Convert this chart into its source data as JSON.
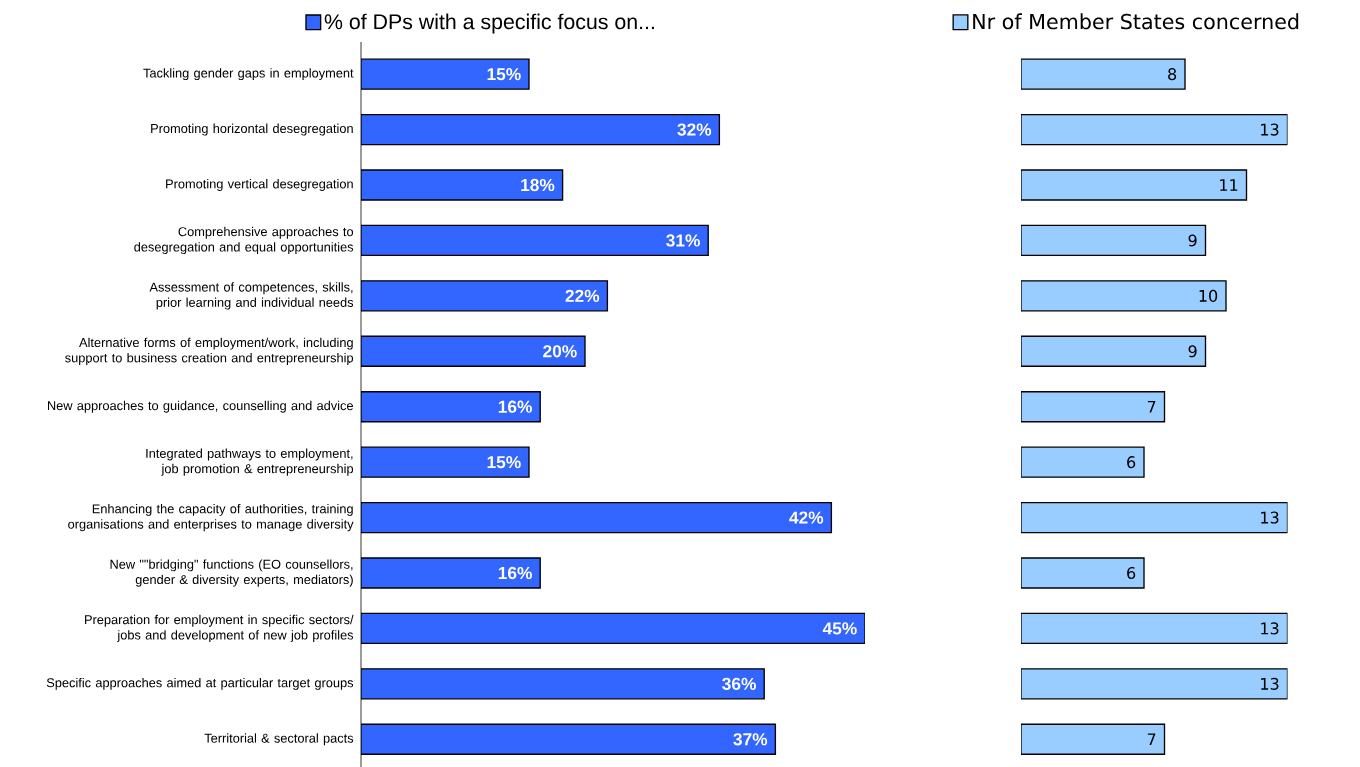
{
  "chart_data": [
    {
      "type": "bar",
      "orientation": "horizontal",
      "legend": "top",
      "tick_labels": "y",
      "categories": [
        "Tackling gender gaps in employment",
        "Promoting horizontal desegregation",
        "Promoting vertical desegregation",
        "Comprehensive approaches to desegregation and equal opportunities",
        "Assessment of competences, skills, prior learning and individual needs",
        "Alternative forms of employment/work, including support to business creation and entrepreneurship",
        "New approaches to guidance, counselling and advice",
        "Integrated pathways to employment, job promotion & entrepreneurship",
        "Enhancing the capacity of authorities, training organisations and enterprises to manage diversity",
        "New \"\"bridging\" functions (EO counsellors, gender & diversity experts, mediators)",
        "Preparation for employment in specific sectors/ jobs and development of new job profiles",
        "Specific approaches aimed at particular target groups",
        "Territorial & sectoral pacts"
      ],
      "series": [
        {
          "name": "% of DPs with a specific focus on...",
          "color": "#3366ff",
          "values": [
            15,
            32,
            18,
            31,
            22,
            20,
            16,
            15,
            42,
            16,
            45,
            36,
            37
          ],
          "value_labels": [
            "15%",
            "32%",
            "18%",
            "31%",
            "22%",
            "20%",
            "16%",
            "15%",
            "42%",
            "16%",
            "45%",
            "36%",
            "37%"
          ]
        }
      ]
    },
    {
      "type": "bar",
      "orientation": "horizontal",
      "legend": "top",
      "tick_labels": false,
      "data_labels": true,
      "categories": [
        null,
        null,
        null,
        null,
        null,
        null,
        null,
        null,
        null,
        null,
        null,
        null,
        null
      ],
      "series": [
        {
          "name": "Nr of Member States concerned",
          "color": "#99ccff",
          "values": [
            8,
            13,
            11,
            9,
            10,
            9,
            7,
            6,
            13,
            6,
            13,
            13,
            7
          ]
        }
      ]
    }
  ]
}
